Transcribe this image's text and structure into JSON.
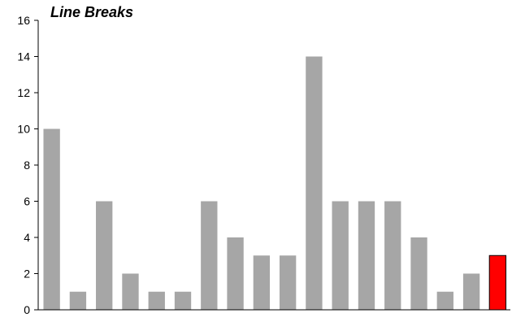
{
  "chart_data": {
    "type": "bar",
    "title": "Line Breaks",
    "xlabel": "",
    "ylabel": "",
    "categories": [
      "",
      "",
      "",
      "",
      "",
      "",
      "",
      "",
      "",
      "",
      "",
      "",
      "",
      "",
      "",
      "",
      "",
      ""
    ],
    "values": [
      10,
      1,
      6,
      2,
      1,
      1,
      6,
      4,
      3,
      3,
      14,
      6,
      6,
      6,
      4,
      1,
      2,
      3
    ],
    "highlight_index": 17,
    "ylim": [
      0,
      16
    ],
    "yticks": [
      0,
      2,
      4,
      6,
      8,
      10,
      12,
      14,
      16
    ],
    "grid": false,
    "colors": {
      "bar": "#a6a6a6",
      "highlight": "#ff0000",
      "highlight_stroke": "#000000",
      "axis": "#000000"
    }
  }
}
